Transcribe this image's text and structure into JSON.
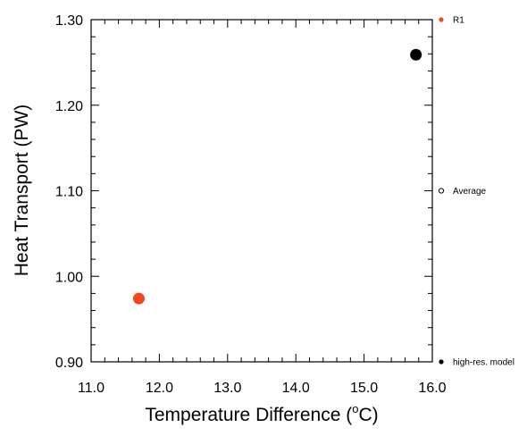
{
  "chart_data": {
    "type": "scatter",
    "xlabel": "Temperature Difference (",
    "xlabel_unit_sup": "o",
    "xlabel_unit_tail": "C)",
    "ylabel": "Heat Transport (PW)",
    "xlim": [
      11.0,
      16.0
    ],
    "ylim": [
      0.9,
      1.3
    ],
    "x_ticks": [
      11.0,
      12.0,
      13.0,
      14.0,
      15.0,
      16.0
    ],
    "x_tick_labels": [
      "11.0",
      "12.0",
      "13.0",
      "14.0",
      "15.0",
      "16.0"
    ],
    "y_ticks": [
      0.9,
      1.0,
      1.1,
      1.2,
      1.3
    ],
    "y_tick_labels": [
      "0.90",
      "1.00",
      "1.10",
      "1.20",
      "1.30"
    ],
    "grid": false,
    "legend_placement": "right",
    "series": [
      {
        "name": "R1",
        "color": "#f04a1a",
        "marker": "filled-circle",
        "points": [
          {
            "x": 11.7,
            "y": 0.974
          }
        ]
      },
      {
        "name": "high-res. model",
        "color": "#000000",
        "marker": "filled-circle",
        "points": [
          {
            "x": 15.76,
            "y": 1.259
          }
        ]
      }
    ],
    "legend": [
      {
        "label": "R1",
        "color": "#f04a1a",
        "marker": "filled-circle"
      },
      {
        "label": "Average",
        "color": "#000000",
        "marker": "open-circle"
      },
      {
        "label": "high-res. model",
        "color": "#000000",
        "marker": "filled-circle"
      }
    ]
  }
}
